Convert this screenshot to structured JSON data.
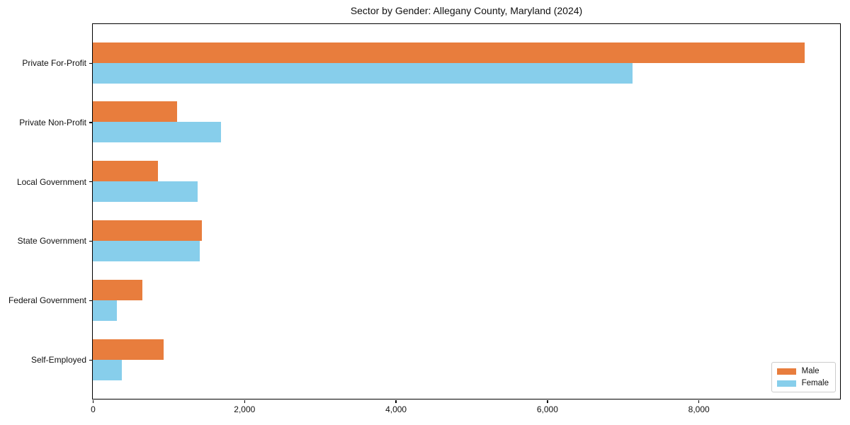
{
  "title": "Sector by Gender: Allegany County, Maryland (2024)",
  "chart_data": {
    "type": "bar",
    "orientation": "horizontal",
    "title": "Sector by Gender: Allegany County, Maryland (2024)",
    "categories": [
      "Private For-Profit",
      "Private Non-Profit",
      "Local Government",
      "State Government",
      "Federal Government",
      "Self-Employed"
    ],
    "series": [
      {
        "name": "Male",
        "color": "#e87d3d",
        "values": [
          9390,
          1110,
          860,
          1440,
          650,
          930
        ]
      },
      {
        "name": "Female",
        "color": "#87ceeb",
        "values": [
          7120,
          1690,
          1380,
          1410,
          320,
          380
        ]
      }
    ],
    "xlabel": "",
    "ylabel": "",
    "xlim": [
      0,
      9860
    ],
    "x_ticks": [
      {
        "value": 0,
        "label": "0"
      },
      {
        "value": 2000,
        "label": "2,000"
      },
      {
        "value": 4000,
        "label": "4,000"
      },
      {
        "value": 6000,
        "label": "6,000"
      },
      {
        "value": 8000,
        "label": "8,000"
      },
      {
        "value": 9860,
        "label": ""
      }
    ],
    "legend": {
      "position": "lower right",
      "entries": [
        "Male",
        "Female"
      ]
    },
    "grid": false
  },
  "colors": {
    "background": "#ffffff",
    "spine": "#000000",
    "text": "#111111",
    "male": "#e87d3d",
    "female": "#87ceeb",
    "legend_border": "#cccccc"
  }
}
